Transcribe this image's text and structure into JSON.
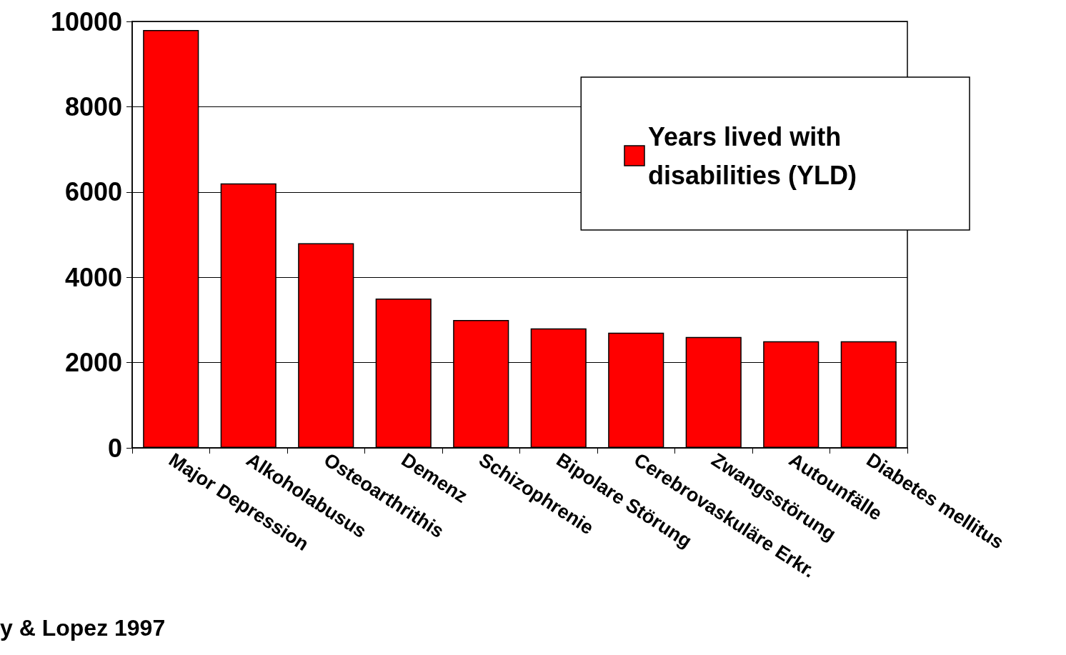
{
  "chart_data": {
    "type": "bar",
    "categories": [
      "Major Depression",
      "Alkoholabusus",
      "Osteoarthrithis",
      "Demenz",
      "Schizophrenie",
      "Bipolare Störung",
      "Cerebrovaskuläre Erkr.",
      "Zwangsstörung",
      "Autounfälle",
      "Diabetes mellitus"
    ],
    "series": [
      {
        "name": "Years lived with disabilities (YLD)",
        "color": "#ff0000",
        "values": [
          9800,
          6200,
          4800,
          3500,
          3000,
          2800,
          2700,
          2600,
          2500,
          2500
        ]
      }
    ],
    "ylim": [
      0,
      10000
    ],
    "yticks": [
      0,
      2000,
      4000,
      6000,
      8000,
      10000
    ],
    "grid": "y",
    "legend": "top right",
    "annotations": [
      "y & Lopez 1997"
    ]
  }
}
